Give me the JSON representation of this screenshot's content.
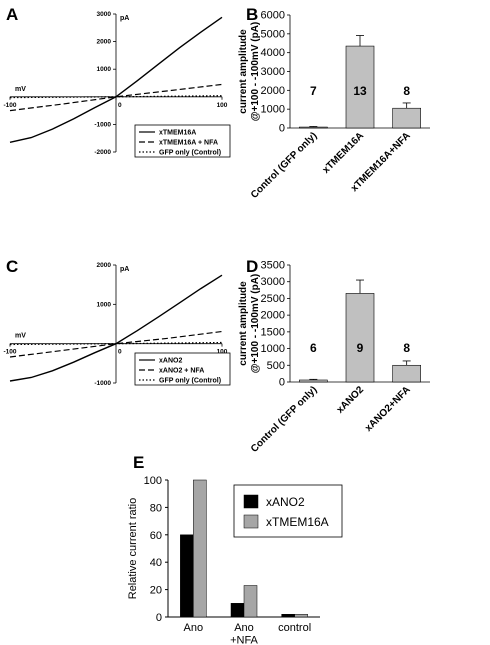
{
  "chart_data": [
    {
      "panel": "A",
      "type": "line",
      "xlabel": "mV",
      "ylabel": "pA",
      "xlim": [
        -100,
        100
      ],
      "ylim": [
        -2000,
        3000
      ],
      "xticks": [
        -100,
        0,
        100
      ],
      "yticks": [
        -2000,
        -1000,
        1000,
        2000,
        3000
      ],
      "series": [
        {
          "name": "xTMEM16A",
          "style": "solid",
          "x": [
            -100,
            -80,
            -60,
            -40,
            -20,
            0,
            20,
            40,
            60,
            80,
            100
          ],
          "y": [
            -1650,
            -1480,
            -1170,
            -800,
            -390,
            0,
            580,
            1180,
            1780,
            2340,
            2880
          ]
        },
        {
          "name": "xTMEM16A + NFA",
          "style": "dashed",
          "x": [
            -100,
            -50,
            0,
            50,
            100
          ],
          "y": [
            -500,
            -260,
            0,
            220,
            450
          ]
        },
        {
          "name": "GFP only (Control)",
          "style": "dotted",
          "x": [
            -100,
            0,
            100
          ],
          "y": [
            -30,
            0,
            40
          ]
        }
      ]
    },
    {
      "panel": "B",
      "type": "bar",
      "ylabel": "current amplitude @+100 - -100mV (pA)",
      "ylim": [
        0,
        6000
      ],
      "yticks": [
        0,
        1000,
        2000,
        3000,
        4000,
        5000,
        6000
      ],
      "categories": [
        "Control (GFP only)",
        "xTMEM16A",
        "xTMEM16A+NFA"
      ],
      "values": [
        50,
        4350,
        1050
      ],
      "errors": [
        30,
        560,
        280
      ],
      "n": [
        "7",
        "13",
        "8"
      ]
    },
    {
      "panel": "C",
      "type": "line",
      "xlabel": "mV",
      "ylabel": "pA",
      "xlim": [
        -100,
        100
      ],
      "ylim": [
        -1000,
        2000
      ],
      "xticks": [
        -100,
        0,
        100
      ],
      "yticks": [
        -1000,
        1000,
        2000
      ],
      "series": [
        {
          "name": "xANO2",
          "style": "solid",
          "x": [
            -100,
            -80,
            -60,
            -40,
            -20,
            0,
            20,
            40,
            60,
            80,
            100
          ],
          "y": [
            -950,
            -860,
            -690,
            -470,
            -230,
            0,
            330,
            680,
            1040,
            1400,
            1740
          ]
        },
        {
          "name": "xANO2 + NFA",
          "style": "dashed",
          "x": [
            -100,
            -50,
            0,
            50,
            100
          ],
          "y": [
            -340,
            -170,
            0,
            140,
            310
          ]
        },
        {
          "name": "GFP only (Control)",
          "style": "dotted",
          "x": [
            -100,
            0,
            100
          ],
          "y": [
            -20,
            0,
            30
          ]
        }
      ]
    },
    {
      "panel": "D",
      "type": "bar",
      "ylabel": "current amplitude @+100 - -100mV (pA)",
      "ylim": [
        0,
        3500
      ],
      "yticks": [
        0,
        500,
        1000,
        1500,
        2000,
        2500,
        3000,
        3500
      ],
      "categories": [
        "Control (GFP only)",
        "xANO2",
        "xANO2+NFA"
      ],
      "values": [
        60,
        2650,
        500
      ],
      "errors": [
        20,
        400,
        130
      ],
      "n": [
        "6",
        "9",
        "8"
      ]
    },
    {
      "panel": "E",
      "type": "bar",
      "ylabel": "Relative current ratio",
      "ylim": [
        0,
        100
      ],
      "yticks": [
        0,
        20,
        40,
        60,
        80,
        100
      ],
      "categories": [
        "Ano",
        "Ano +NFA",
        "control"
      ],
      "series": [
        {
          "name": "xANO2",
          "color": "#000000",
          "values": [
            60,
            10,
            2
          ]
        },
        {
          "name": "xTMEM16A",
          "color": "#a6a6a6",
          "values": [
            100,
            23,
            2
          ]
        }
      ]
    }
  ]
}
